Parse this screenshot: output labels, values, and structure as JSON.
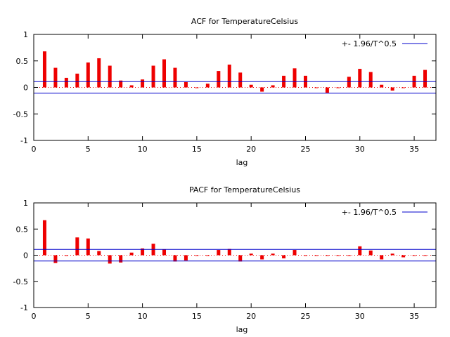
{
  "chart_data": [
    {
      "type": "bar",
      "title": "ACF for TemperatureCelsius",
      "xlabel": "lag",
      "ylabel": "",
      "xlim": [
        0,
        37
      ],
      "ylim": [
        -1,
        1
      ],
      "xticks": [
        "0",
        "5",
        "10",
        "15",
        "20",
        "25",
        "30",
        "35"
      ],
      "yticks": [
        "1",
        "0.5",
        "0",
        "-0.5",
        "-1"
      ],
      "grid": false,
      "legend_position": "top-right",
      "band": {
        "name": "+- 1.96/T^0.5",
        "value": 0.11,
        "color": "#0000cc"
      },
      "bar_color": "#ee0000",
      "lags": [
        1,
        2,
        3,
        4,
        5,
        6,
        7,
        8,
        9,
        10,
        11,
        12,
        13,
        14,
        15,
        16,
        17,
        18,
        19,
        20,
        21,
        22,
        23,
        24,
        25,
        26,
        27,
        28,
        29,
        30,
        31,
        32,
        33,
        34,
        35,
        36
      ],
      "values": [
        0.68,
        0.37,
        0.18,
        0.26,
        0.47,
        0.55,
        0.41,
        0.13,
        0.04,
        0.15,
        0.41,
        0.53,
        0.37,
        0.1,
        -0.01,
        0.07,
        0.31,
        0.43,
        0.28,
        0.05,
        -0.08,
        0.04,
        0.22,
        0.36,
        0.22,
        0.0,
        -0.1,
        -0.01,
        0.2,
        0.35,
        0.29,
        0.05,
        -0.06,
        0.0,
        0.22,
        0.33
      ]
    },
    {
      "type": "bar",
      "title": "PACF for TemperatureCelsius",
      "xlabel": "lag",
      "ylabel": "",
      "xlim": [
        0,
        37
      ],
      "ylim": [
        -1,
        1
      ],
      "xticks": [
        "0",
        "5",
        "10",
        "15",
        "20",
        "25",
        "30",
        "35"
      ],
      "yticks": [
        "1",
        "0.5",
        "0",
        "-0.5",
        "-1"
      ],
      "grid": false,
      "legend_position": "top-right",
      "band": {
        "name": "+- 1.96/T^0.5",
        "value": 0.11,
        "color": "#0000cc"
      },
      "bar_color": "#ee0000",
      "lags": [
        1,
        2,
        3,
        4,
        5,
        6,
        7,
        8,
        9,
        10,
        11,
        12,
        13,
        14,
        15,
        16,
        17,
        18,
        19,
        20,
        21,
        22,
        23,
        24,
        25,
        26,
        27,
        28,
        29,
        30,
        31,
        32,
        33,
        34,
        35,
        36
      ],
      "values": [
        0.67,
        -0.15,
        0.0,
        0.34,
        0.32,
        0.08,
        -0.16,
        -0.14,
        0.05,
        0.13,
        0.22,
        0.11,
        -0.12,
        -0.1,
        -0.01,
        0.0,
        0.1,
        0.12,
        -0.12,
        0.03,
        -0.08,
        0.03,
        -0.06,
        0.1,
        0.0,
        0.0,
        -0.01,
        0.0,
        0.0,
        0.17,
        0.09,
        -0.08,
        0.03,
        -0.04,
        0.0,
        0.0
      ]
    }
  ]
}
